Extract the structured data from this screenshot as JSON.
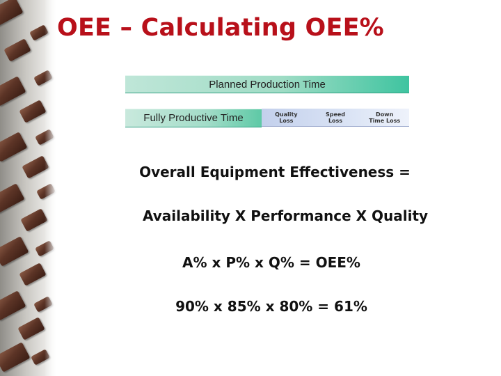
{
  "title": "OEE – Calculating OEE%",
  "diagram": {
    "planned_label": "Planned Production Time",
    "productive_label": "Fully Productive Time",
    "losses": [
      {
        "label": "Quality\nLoss"
      },
      {
        "label": "Speed\nLoss"
      },
      {
        "label": "Down\nTime Loss"
      }
    ]
  },
  "formula": {
    "line1": "Overall Equipment Effectiveness =",
    "line2": "Availability X Performance X Quality",
    "line3": "A% x P% x Q% = OEE%",
    "line4": "90% x 85% x 80% = 61%"
  },
  "colors": {
    "title": "#b8101a",
    "green_bar": "#9fdcc5",
    "loss_bar": "#c3d0ec"
  }
}
